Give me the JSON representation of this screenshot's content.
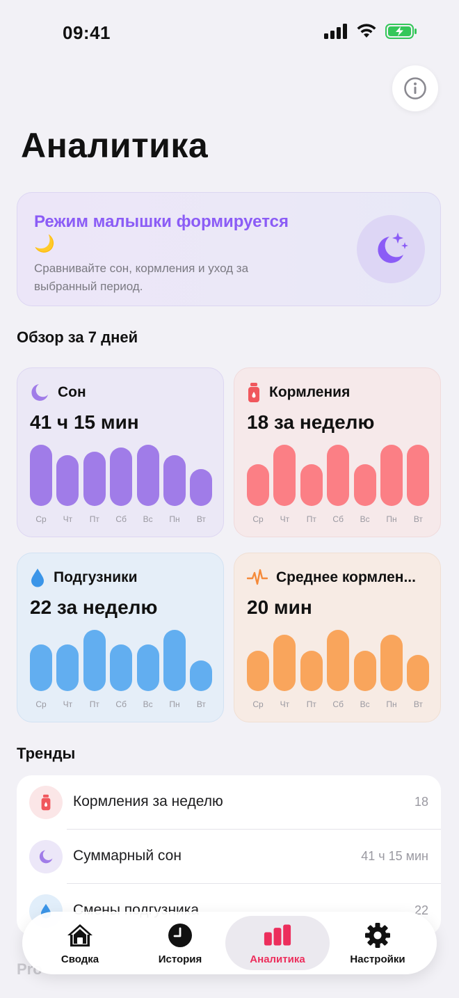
{
  "status": {
    "time": "09:41"
  },
  "page": {
    "title": "Аналитика"
  },
  "banner": {
    "title": "Режим малышки формируется 🌙",
    "description": "Сравнивайте сон, кормления и уход за выбранный период."
  },
  "overview": {
    "title": "Обзор за 7 дней",
    "days": [
      "Ср",
      "Чт",
      "Пт",
      "Сб",
      "Вс",
      "Пн",
      "Вт"
    ],
    "cards": [
      {
        "label": "Сон",
        "value": "41 ч 15 мин",
        "icon": "moon-icon",
        "color": "#a07ce8",
        "bars": [
          0.92,
          0.76,
          0.81,
          0.87,
          0.92,
          0.76,
          0.55
        ]
      },
      {
        "label": "Кормления",
        "value": "18 за неделю",
        "icon": "bottle-icon",
        "color": "#fb7f85",
        "bars": [
          0.62,
          0.92,
          0.62,
          0.92,
          0.62,
          0.92,
          0.92
        ]
      },
      {
        "label": "Подгузники",
        "value": "22 за неделю",
        "icon": "drop-icon",
        "color": "#62aef0",
        "bars": [
          0.7,
          0.7,
          0.92,
          0.7,
          0.7,
          0.92,
          0.46
        ]
      },
      {
        "label": "Среднее кормлен...",
        "value": "20 мин",
        "icon": "pulse-icon",
        "color": "#f9a55c",
        "bars": [
          0.6,
          0.84,
          0.6,
          0.92,
          0.6,
          0.84,
          0.54
        ]
      }
    ]
  },
  "trends": {
    "title": "Тренды",
    "items": [
      {
        "label": "Кормления за неделю",
        "value": "18"
      },
      {
        "label": "Суммарный сон",
        "value": "41 ч 15 мин"
      },
      {
        "label": "Смены подгузника",
        "value": "22"
      }
    ]
  },
  "tabs": [
    {
      "label": "Сводка",
      "icon": "house-icon"
    },
    {
      "label": "История",
      "icon": "clock-icon"
    },
    {
      "label": "Аналитика",
      "icon": "chart-bars-icon",
      "active": true
    },
    {
      "label": "Настройки",
      "icon": "gear-icon"
    }
  ],
  "below_tabbar": "Pro",
  "colors": {
    "accent": "#ec2e5c",
    "banner_title": "#8b5cf6"
  }
}
